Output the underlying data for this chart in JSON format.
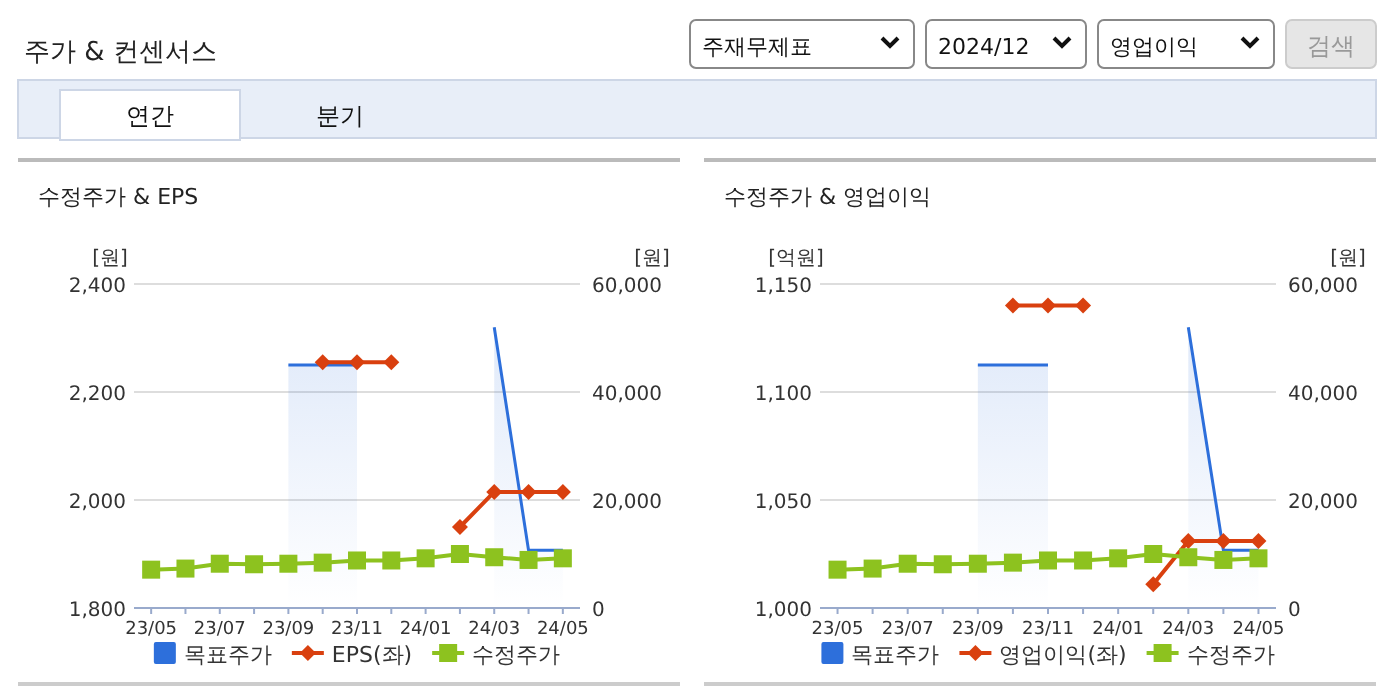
{
  "chart_data": [
    {
      "type": "other",
      "title": "주가 & 컨센서스",
      "annotations": [
        "주재무제표",
        "2024/12",
        "영업이익",
        "검색",
        "연간",
        "분기"
      ]
    },
    {
      "type": "line",
      "title": "수정주가 & EPS",
      "ylabel": "[원]",
      "y2label": "[원]",
      "categories": [
        "23/05",
        null,
        "23/07",
        null,
        "23/09",
        null,
        "23/11",
        null,
        "24/01",
        null,
        "24/03",
        null,
        "24/05"
      ],
      "ylim": [
        1800,
        2400
      ],
      "yticks": [
        {
          "value": 1800,
          "label": "1,800"
        },
        {
          "value": 2000,
          "label": "2,000"
        },
        {
          "value": 2200,
          "label": "2,200"
        },
        {
          "value": 2400,
          "label": "2,400"
        }
      ],
      "y2lim": [
        0,
        60000
      ],
      "y2ticks": [
        0,
        {
          "value": 20000,
          "label": "20,000"
        },
        {
          "value": 40000,
          "label": "40,000"
        },
        {
          "value": 60000,
          "label": "60,000"
        }
      ],
      "grid": "y",
      "legend": "bottom",
      "series": [
        {
          "name": "목표주가",
          "type": "area",
          "axis": "y2",
          "color": "#2d6fdb",
          "values": [
            null,
            null,
            null,
            null,
            45000,
            45000,
            45000,
            null,
            null,
            null,
            52000,
            10700,
            10700
          ]
        },
        {
          "name": "EPS(좌)",
          "type": "line",
          "marker": "diamond",
          "color": "#d9400f",
          "values": [
            null,
            null,
            null,
            null,
            null,
            2255,
            2255,
            2255,
            null,
            1950,
            2015,
            2015,
            2015
          ]
        },
        {
          "name": "수정주가",
          "type": "line",
          "marker": "square",
          "axis": "y2",
          "color": "#8dc21f",
          "values": [
            7100,
            7300,
            8200,
            8100,
            8200,
            8400,
            8800,
            8800,
            9200,
            10000,
            9400,
            8900,
            9200
          ]
        }
      ]
    },
    {
      "type": "line",
      "title": "수정주가 & 영업이익",
      "ylabel": "[억원]",
      "y2label": "[원]",
      "categories": [
        "23/05",
        null,
        "23/07",
        null,
        "23/09",
        null,
        "23/11",
        null,
        "24/01",
        null,
        "24/03",
        null,
        "24/05"
      ],
      "ylim": [
        1000,
        1150
      ],
      "yticks": [
        {
          "value": 1000,
          "label": "1,000"
        },
        {
          "value": 1050,
          "label": "1,050"
        },
        {
          "value": 1100,
          "label": "1,100"
        },
        {
          "value": 1150,
          "label": "1,150"
        }
      ],
      "y2lim": [
        0,
        60000
      ],
      "y2ticks": [
        0,
        {
          "value": 20000,
          "label": "20,000"
        },
        {
          "value": 40000,
          "label": "40,000"
        },
        {
          "value": 60000,
          "label": "60,000"
        }
      ],
      "grid": "y",
      "legend": "bottom",
      "series": [
        {
          "name": "목표주가",
          "type": "area",
          "axis": "y2",
          "color": "#2d6fdb",
          "values": [
            null,
            null,
            null,
            null,
            45000,
            45000,
            45000,
            null,
            null,
            null,
            52000,
            10700,
            10700
          ]
        },
        {
          "name": "영업이익(좌)",
          "type": "line",
          "marker": "diamond",
          "color": "#d9400f",
          "values": [
            null,
            null,
            null,
            null,
            null,
            1140,
            1140,
            1140,
            null,
            1011,
            1031,
            1031,
            1031
          ]
        },
        {
          "name": "수정주가",
          "type": "line",
          "marker": "square",
          "axis": "y2",
          "color": "#8dc21f",
          "values": [
            7100,
            7300,
            8200,
            8100,
            8200,
            8400,
            8800,
            8800,
            9200,
            10000,
            9400,
            8900,
            9200
          ]
        }
      ]
    }
  ]
}
